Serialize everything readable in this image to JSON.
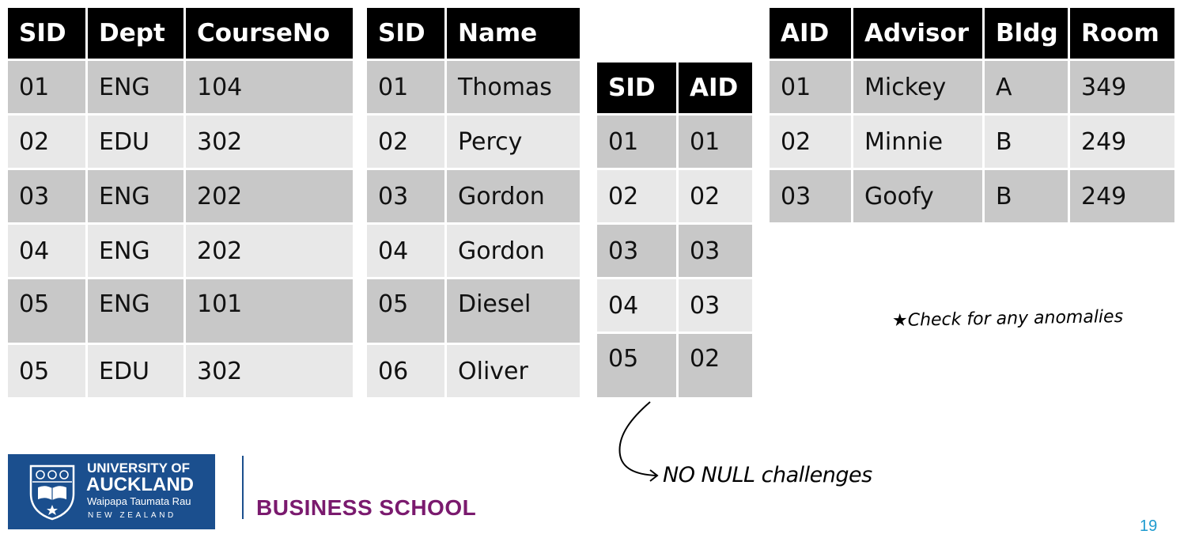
{
  "enrollment_table": {
    "headers": [
      "SID",
      "Dept",
      "CourseNo"
    ],
    "rows": [
      [
        "01",
        "ENG",
        "104"
      ],
      [
        "02",
        "EDU",
        "302"
      ],
      [
        "03",
        "ENG",
        "202"
      ],
      [
        "04",
        "ENG",
        "202"
      ],
      [
        "05",
        "ENG",
        "101"
      ],
      [
        "05",
        "EDU",
        "302"
      ]
    ]
  },
  "student_table": {
    "headers": [
      "SID",
      "Name"
    ],
    "rows": [
      [
        "01",
        "Thomas"
      ],
      [
        "02",
        "Percy"
      ],
      [
        "03",
        "Gordon"
      ],
      [
        "04",
        "Gordon"
      ],
      [
        "05",
        "Diesel"
      ],
      [
        "06",
        "Oliver"
      ]
    ]
  },
  "student_advisor_table": {
    "headers": [
      "SID",
      "AID"
    ],
    "rows": [
      [
        "01",
        "01"
      ],
      [
        "02",
        "02"
      ],
      [
        "03",
        "03"
      ],
      [
        "04",
        "03"
      ],
      [
        "05",
        "02"
      ]
    ]
  },
  "advisor_table": {
    "headers": [
      "AID",
      "Advisor",
      "Bldg",
      "Room"
    ],
    "rows": [
      [
        "01",
        "Mickey",
        "A",
        "349"
      ],
      [
        "02",
        "Minnie",
        "B",
        "249"
      ],
      [
        "03",
        "Goofy",
        "B",
        "249"
      ]
    ]
  },
  "annotations": {
    "check_note": "★Check for any anomalies",
    "null_note": "NO NULL challenges"
  },
  "logo": {
    "line1": "UNIVERSITY OF",
    "line2": "AUCKLAND",
    "line3": "Waipapa Taumata Rau",
    "line4": "NEW ZEALAND"
  },
  "school_name": "BUSINESS SCHOOL",
  "page_number": "19",
  "colors": {
    "header_bg": "#000000",
    "row_dark": "#c8c8c8",
    "row_light": "#e8e8e8",
    "logo_blue": "#1b4f8e",
    "school_purple": "#7a1a6e",
    "page_number": "#1f9bcf"
  }
}
